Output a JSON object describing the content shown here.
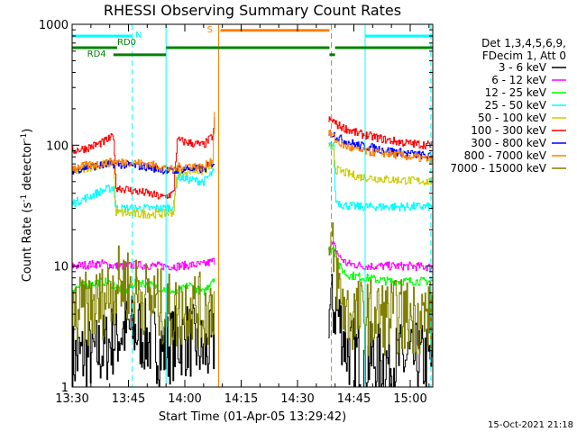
{
  "chart_data": {
    "type": "line",
    "title": "RHESSI Observing Summary Count Rates",
    "xlabel": "Start Time (01-Apr-05 13:29:42)",
    "ylabel": "Count Rate (s",
    "ylabel_sup1": "-1",
    "ylabel_mid": " detector",
    "ylabel_sup2": "-1",
    "ylabel_end": ")",
    "y_scale": "log",
    "ylim": [
      1,
      1000
    ],
    "xlim_minutes": [
      0,
      96
    ],
    "x_ticks": [
      {
        "t": 0,
        "label": "13:30"
      },
      {
        "t": 15,
        "label": "13:45"
      },
      {
        "t": 30,
        "label": "14:00"
      },
      {
        "t": 45,
        "label": "14:15"
      },
      {
        "t": 60,
        "label": "14:30"
      },
      {
        "t": 75,
        "label": "14:45"
      },
      {
        "t": 90,
        "label": "15:00"
      }
    ],
    "y_ticks": [
      {
        "v": 1,
        "label": "1"
      },
      {
        "v": 10,
        "label": "10"
      },
      {
        "v": 100,
        "label": "100"
      },
      {
        "v": 1000,
        "label": "1000"
      }
    ],
    "legend_header": [
      "Det 1,3,4,5,6,9,",
      "FDecim 1, Att 0"
    ],
    "legend_position": "right",
    "timestamp": "15-Oct-2021 21:18",
    "gaps_minutes": [
      [
        38,
        68
      ]
    ],
    "series": [
      {
        "name": "3 - 6 keV",
        "color": "#000000",
        "x": [
          0,
          8,
          11,
          14,
          17,
          24,
          28,
          31,
          35,
          37.5,
          70,
          73,
          78,
          84,
          90,
          96
        ],
        "y": [
          1.7,
          2.0,
          2.5,
          3.0,
          2.9,
          2.0,
          2.4,
          2.5,
          1.9,
          2.2,
          4.5,
          2.0,
          1.7,
          1.6,
          1.7,
          1.6
        ]
      },
      {
        "name": "6 - 12 keV",
        "color": "#ff00ff",
        "x": [
          0,
          8,
          11,
          14,
          17,
          24,
          28,
          31,
          35,
          37.5,
          69.5,
          71,
          73,
          78,
          84,
          90,
          96
        ],
        "y": [
          10,
          10.5,
          10,
          10,
          10.2,
          10,
          10,
          10.2,
          10.3,
          11,
          15,
          12,
          10.5,
          10,
          10,
          10,
          9.8
        ]
      },
      {
        "name": "12 - 25 keV",
        "color": "#00ff00",
        "x": [
          0,
          8,
          11,
          14,
          17,
          24,
          28,
          31,
          35,
          37.5,
          69.5,
          71,
          73,
          78,
          84,
          90,
          96
        ],
        "y": [
          6.5,
          7.5,
          7,
          6,
          7.5,
          6.5,
          6,
          7,
          6,
          8,
          14,
          10,
          8.5,
          8,
          7.5,
          7.5,
          7.5
        ]
      },
      {
        "name": "25 - 50 keV",
        "color": "#00ffff",
        "x": [
          0,
          4,
          8,
          11,
          11.5,
          16,
          20,
          24,
          27,
          28,
          31,
          35,
          37.5,
          69.5,
          70,
          72,
          76,
          84,
          90,
          96
        ],
        "y": [
          33,
          37,
          42,
          45,
          30,
          30,
          30,
          30,
          31,
          55,
          52,
          50,
          60,
          100,
          35,
          32,
          31,
          31,
          31,
          31
        ]
      },
      {
        "name": "50 - 100 keV",
        "color": "#cccc00",
        "x": [
          0,
          4,
          8,
          11,
          11.5,
          16,
          20,
          24,
          27,
          28,
          31,
          35,
          37.5,
          69.5,
          70,
          72,
          76,
          84,
          90,
          96
        ],
        "y": [
          60,
          65,
          70,
          73,
          28,
          27,
          27,
          27,
          28,
          60,
          62,
          61,
          70,
          95,
          63,
          60,
          55,
          52,
          51,
          50
        ]
      },
      {
        "name": "100 - 300 keV",
        "color": "#ff0000",
        "x": [
          0,
          4,
          8,
          11,
          11.5,
          16,
          20,
          24,
          27,
          28,
          31,
          35,
          37.5,
          38,
          69.5,
          70,
          72,
          76,
          84,
          90,
          96
        ],
        "y": [
          90,
          95,
          105,
          118,
          45,
          42,
          40,
          37,
          40,
          110,
          105,
          100,
          120,
          180,
          160,
          150,
          140,
          125,
          110,
          103,
          100
        ]
      },
      {
        "name": "300 - 800 keV",
        "color": "#0000ff",
        "x": [
          0,
          4,
          8,
          11,
          16,
          20,
          24,
          27,
          28,
          31,
          35,
          37.5,
          69.5,
          70,
          72,
          76,
          84,
          90,
          96
        ],
        "y": [
          62,
          66,
          68,
          70,
          68,
          66,
          63,
          60,
          63,
          64,
          63,
          72,
          125,
          120,
          110,
          100,
          90,
          85,
          80
        ]
      },
      {
        "name": "800 - 7000 keV",
        "color": "#ff8000",
        "x": [
          0,
          4,
          8,
          11,
          16,
          20,
          24,
          27,
          28,
          31,
          35,
          37.5,
          38,
          69.5,
          70,
          72,
          76,
          84,
          90,
          96
        ],
        "y": [
          65,
          68,
          70,
          73,
          72,
          70,
          66,
          62,
          66,
          68,
          65,
          78,
          260,
          120,
          110,
          100,
          90,
          85,
          80,
          75
        ]
      },
      {
        "name": "7000 - 15000 keV",
        "color": "#808000",
        "x": [
          0,
          8,
          11,
          14,
          17,
          24,
          28,
          31,
          35,
          37.5,
          69.5,
          71,
          73,
          78,
          84,
          90,
          96
        ],
        "y": [
          3.8,
          5,
          6.8,
          7.5,
          6,
          4.5,
          4,
          5,
          4,
          5,
          12,
          6,
          4,
          3.8,
          3.8,
          3.8,
          3.8
        ]
      }
    ],
    "annotations": {
      "cyan_bars": [
        {
          "label": "N",
          "x_start": 0,
          "x_end": 16,
          "y": 800
        },
        {
          "label": "",
          "x_start": 78,
          "x_end": 96,
          "y": 800
        }
      ],
      "orange_bar": {
        "label": "S",
        "x_start": 39.5,
        "x_end": 68.5,
        "y": 890
      },
      "green_bars": [
        {
          "label": "RD0",
          "x_start": 0,
          "x_end": 12,
          "y": 640
        },
        {
          "label": "RD4",
          "x_start": 11,
          "x_end": 25,
          "y": 560
        },
        {
          "label": "",
          "x_start": 25,
          "x_end": 68.5,
          "y": 640
        },
        {
          "label": "",
          "x_start": 68.5,
          "x_end": 70,
          "y": 560
        },
        {
          "label": "",
          "x_start": 70,
          "x_end": 96,
          "y": 640
        }
      ],
      "vlines": [
        {
          "x": 0,
          "color": "#00ffff",
          "style": "solid"
        },
        {
          "x": 16,
          "color": "#00ffff",
          "style": "dashed"
        },
        {
          "x": 25,
          "color": "#00ffff",
          "style": "solid"
        },
        {
          "x": 39,
          "color": "#ff8000",
          "style": "solid"
        },
        {
          "x": 69,
          "color": "#ff8000",
          "style": "dashed"
        },
        {
          "x": 78,
          "color": "#00ffff",
          "style": "solid"
        },
        {
          "x": 95.5,
          "color": "#00ffff",
          "style": "dashed"
        }
      ]
    }
  }
}
